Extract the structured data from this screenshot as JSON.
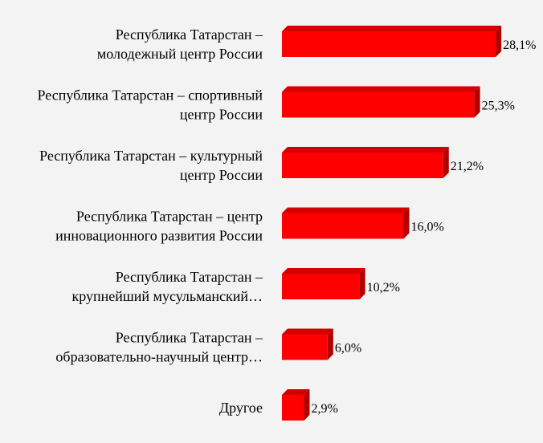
{
  "chart_data": {
    "type": "bar",
    "orientation": "horizontal",
    "style": "3d",
    "bar_color": "#ff0000",
    "bar_side_color": "#b20000",
    "bar_top_color": "#d40000",
    "categories": [
      [
        "Республика Татарстан –",
        "молодежный центр России"
      ],
      [
        "Республика Татарстан – спортивный",
        "центр России"
      ],
      [
        "Республика Татарстан – культурный",
        "центр России"
      ],
      [
        "Республика Татарстан – центр",
        "инновационного развития России"
      ],
      [
        "Республика Татарстан –",
        "крупнейший мусульманский…"
      ],
      [
        "Республика Татарстан –",
        "образовательно-научный центр…"
      ],
      [
        "Другое"
      ]
    ],
    "values": [
      28.1,
      25.3,
      21.2,
      16.0,
      10.2,
      6.0,
      2.9
    ],
    "value_labels": [
      "28,1%",
      "25,3%",
      "21,2%",
      "16,0%",
      "10,2%",
      "6,0%",
      "2,9%"
    ],
    "xlim": [
      0,
      30
    ],
    "grid": false,
    "legend": "none"
  }
}
